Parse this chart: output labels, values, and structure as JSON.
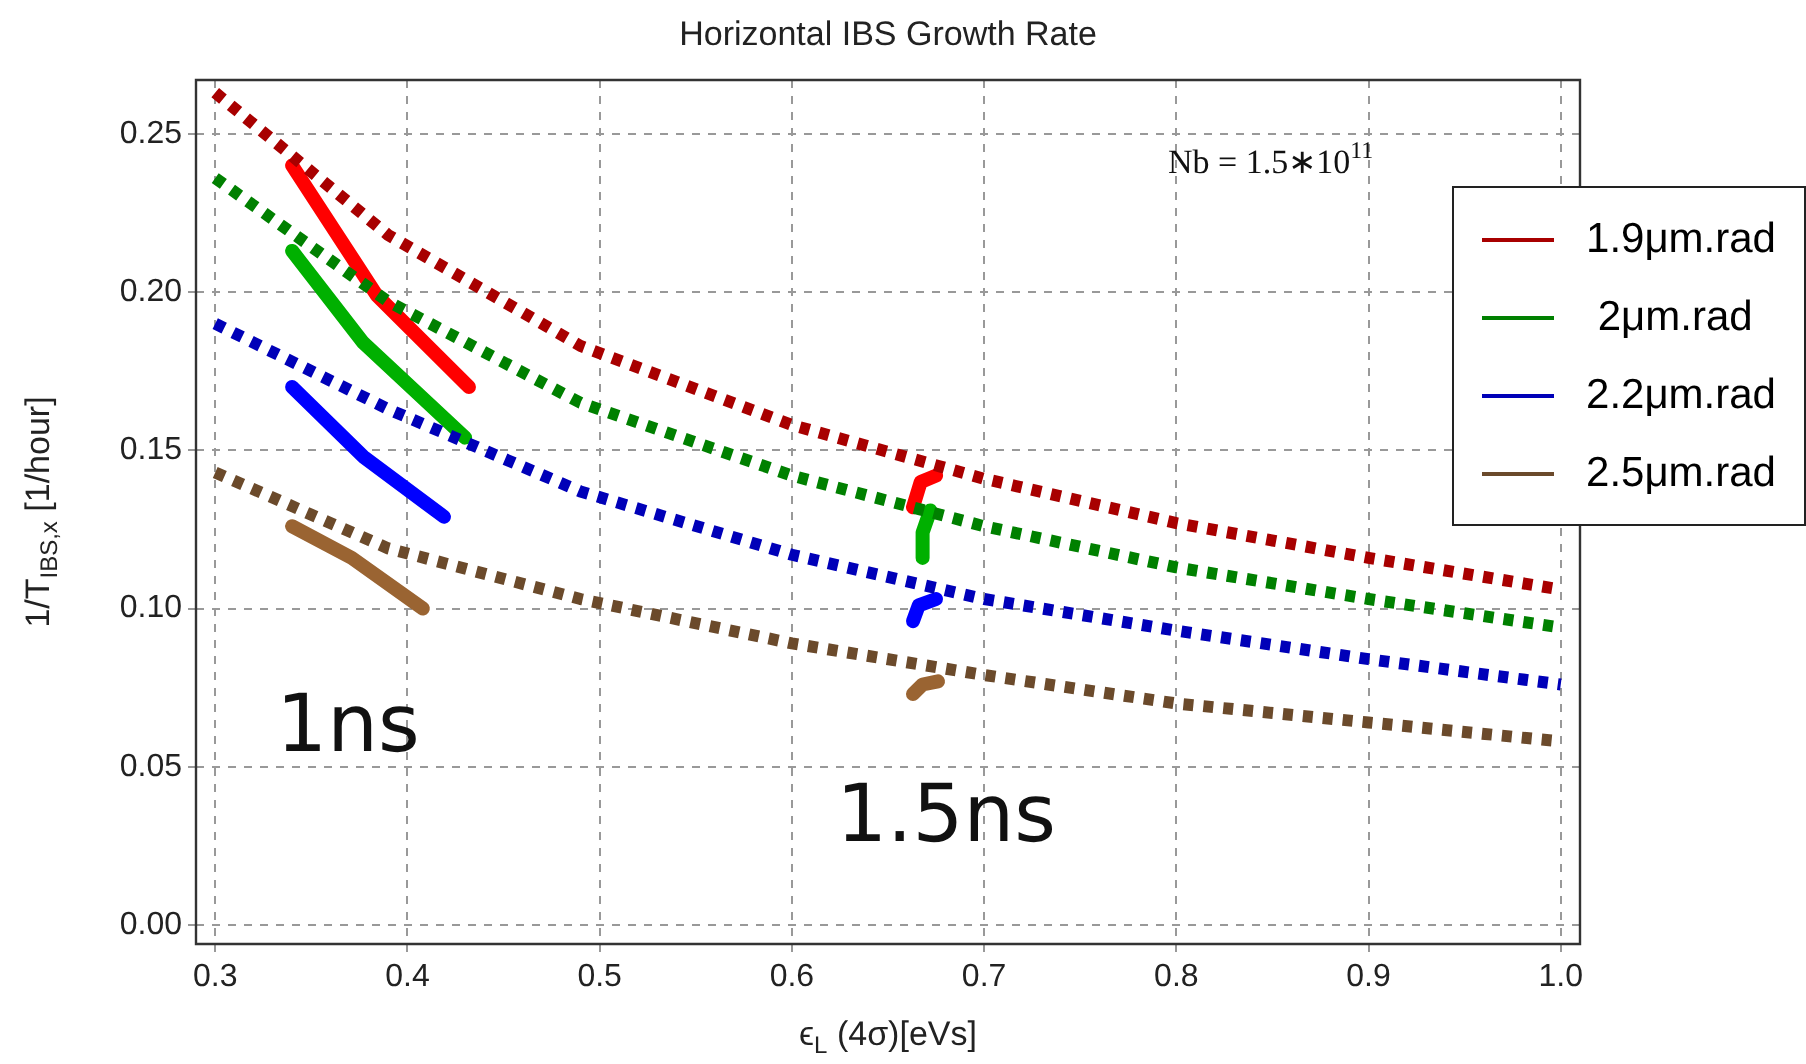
{
  "chart_data": {
    "type": "line",
    "title": "Horizontal IBS Growth Rate",
    "xlabel": "ϵ$_{L}$ (4σ)[eVs]",
    "ylabel": "1/T$_{IBS,x}$ [1/hour]",
    "annotations": [
      "Nb = 1.5∗10$^{11}$",
      "1ns",
      "1.5ns"
    ],
    "xlim": [
      0.29,
      1.01
    ],
    "xticks": [
      0.3,
      0.4,
      0.5,
      0.6,
      0.7,
      0.8,
      0.9,
      {
        "value": 1,
        "label": "1.0"
      }
    ],
    "ylim": [
      -0.006,
      0.267
    ],
    "yticks": [
      {
        "value": 0,
        "label": "0.00"
      },
      {
        "value": 0.05,
        "label": "0.05"
      },
      {
        "value": 0.1,
        "label": "0.10"
      },
      {
        "value": 0.15,
        "label": "0.15"
      },
      {
        "value": 0.2,
        "label": "0.20"
      },
      {
        "value": 0.25,
        "label": "0.25"
      }
    ],
    "grid": true,
    "legend": "top right",
    "marker": "none",
    "series": [
      {
        "name": "1.9μm.rad",
        "color": "#a80000",
        "line_style": "dotted",
        "x": [
          0.3,
          0.39,
          0.49,
          0.6,
          0.7,
          0.8,
          0.9,
          1.0
        ],
        "values": [
          0.263,
          0.218,
          0.183,
          0.158,
          0.141,
          0.127,
          0.116,
          0.106
        ]
      },
      {
        "name": " 2μm.rad",
        "color": "#008000",
        "line_style": "dotted",
        "x": [
          0.3,
          0.39,
          0.49,
          0.6,
          0.7,
          0.8,
          0.9,
          1.0
        ],
        "values": [
          0.236,
          0.197,
          0.165,
          0.142,
          0.126,
          0.113,
          0.103,
          0.094
        ]
      },
      {
        "name": "2.2μm.rad",
        "color": "#0000b8",
        "line_style": "dotted",
        "x": [
          0.3,
          0.39,
          0.49,
          0.6,
          0.7,
          0.8,
          0.9,
          1.0
        ],
        "values": [
          0.19,
          0.163,
          0.137,
          0.117,
          0.103,
          0.093,
          0.084,
          0.076
        ]
      },
      {
        "name": "2.5μm.rad",
        "color": "#6b4a2b",
        "line_style": "dotted",
        "x": [
          0.3,
          0.39,
          0.49,
          0.6,
          0.7,
          0.8,
          0.9,
          1.0
        ],
        "values": [
          0.143,
          0.119,
          0.103,
          0.089,
          0.079,
          0.07,
          0.064,
          0.058
        ]
      },
      {
        "color": "#ff0000",
        "line_style": "solid",
        "x": [
          0.34,
          0.384,
          0.432
        ],
        "values": [
          0.24,
          0.199,
          0.17
        ]
      },
      {
        "color": "#00b000",
        "line_style": "solid",
        "x": [
          0.34,
          0.377,
          0.43
        ],
        "values": [
          0.213,
          0.184,
          0.154
        ]
      },
      {
        "color": "#0000ff",
        "line_style": "solid",
        "x": [
          0.34,
          0.377,
          0.419
        ],
        "values": [
          0.17,
          0.148,
          0.129
        ]
      },
      {
        "color": "#9a6432",
        "line_style": "solid",
        "x": [
          0.34,
          0.371,
          0.408
        ],
        "values": [
          0.126,
          0.116,
          0.1
        ]
      },
      {
        "color": "#ff0000",
        "line_style": "solid",
        "x": [
          0.663,
          0.667,
          0.675
        ],
        "values": [
          0.132,
          0.14,
          0.142
        ]
      },
      {
        "color": "#00b000",
        "line_style": "solid",
        "x": [
          0.668,
          0.668,
          0.672
        ],
        "values": [
          0.116,
          0.124,
          0.131
        ]
      },
      {
        "color": "#0000ff",
        "line_style": "solid",
        "x": [
          0.663,
          0.666,
          0.675
        ],
        "values": [
          0.096,
          0.101,
          0.103
        ]
      },
      {
        "color": "#9a6432",
        "line_style": "solid",
        "x": [
          0.663,
          0.668,
          0.676
        ],
        "values": [
          0.073,
          0.076,
          0.077
        ]
      }
    ]
  }
}
